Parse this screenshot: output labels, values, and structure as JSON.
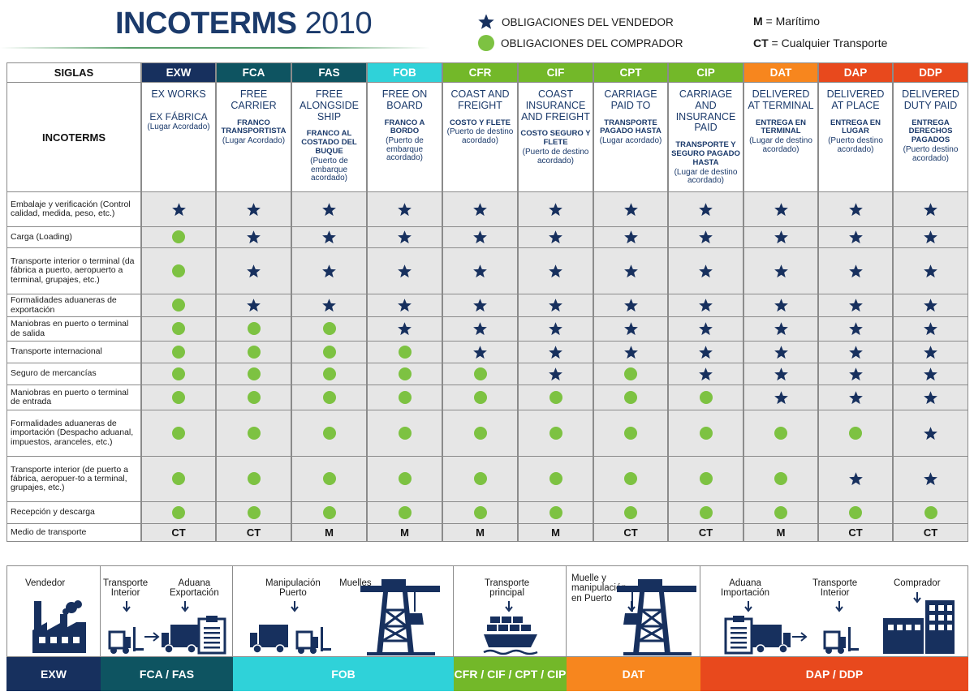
{
  "header": {
    "title_bold": "INCOTERMS",
    "title_year": "2010",
    "legend_seller": "OBLIGACIONES DEL VENDEDOR",
    "legend_buyer": "OBLIGACIONES DEL COMPRADOR",
    "legend_m_key": "M",
    "legend_m_text": " = Marítimo",
    "legend_ct_key": "CT",
    "legend_ct_text": " = Cualquier Transporte"
  },
  "table": {
    "siglas_label": "SIGLAS",
    "incoterms_label": "INCOTERMS",
    "terms": [
      {
        "code": "EXW",
        "color": "#17305e",
        "name": "EX WORKS",
        "name2": "EX FÁBRICA",
        "sub": "",
        "place": "(Lugar Acordado)",
        "mode": "CT"
      },
      {
        "code": "FCA",
        "color": "#0e5461",
        "name": "FREE CARRIER",
        "name2": "",
        "sub": "FRANCO TRANSPORTISTA",
        "place": "(Lugar Acordado)",
        "mode": "CT"
      },
      {
        "code": "FAS",
        "color": "#0e5461",
        "name": "FREE ALONGSIDE SHIP",
        "name2": "",
        "sub": "FRANCO AL COSTADO DEL BUQUE",
        "place": "(Puerto de embarque acordado)",
        "mode": "M"
      },
      {
        "code": "FOB",
        "color": "#2fd2d9",
        "name": "FREE ON BOARD",
        "name2": "",
        "sub": "FRANCO A BORDO",
        "place": "(Puerto de embarque acordado)",
        "mode": "M"
      },
      {
        "code": "CFR",
        "color": "#73b829",
        "name": "COAST AND FREIGHT",
        "name2": "",
        "sub": "COSTO Y FLETE",
        "place": "(Puerto de destino acordado)",
        "mode": "M"
      },
      {
        "code": "CIF",
        "color": "#73b829",
        "name": "COAST INSURANCE AND FREIGHT",
        "name2": "",
        "sub": "COSTO SEGURO Y FLETE",
        "place": "(Puerto de destino acordado)",
        "mode": "M"
      },
      {
        "code": "CPT",
        "color": "#73b829",
        "name": "CARRIAGE PAID TO",
        "name2": "",
        "sub": "TRANSPORTE PAGADO HASTA",
        "place": "(Lugar acordado)",
        "mode": "CT"
      },
      {
        "code": "CIP",
        "color": "#73b829",
        "name": "CARRIAGE AND INSURANCE PAID",
        "name2": "",
        "sub": "TRANSPORTE Y SEGURO PAGADO HASTA",
        "place": "(Lugar de destino acordado)",
        "mode": "CT"
      },
      {
        "code": "DAT",
        "color": "#f7861e",
        "name": "DELIVERED AT TERMINAL",
        "name2": "",
        "sub": "ENTREGA EN TERMINAL",
        "place": "(Lugar de destino acordado)",
        "mode": "M"
      },
      {
        "code": "DAP",
        "color": "#e8491d",
        "name": "DELIVERED AT PLACE",
        "name2": "",
        "sub": "ENTREGA EN LUGAR",
        "place": "(Puerto destino acordado)",
        "mode": "CT"
      },
      {
        "code": "DDP",
        "color": "#e8491d",
        "name": "DELIVERED DUTY PAID",
        "name2": "",
        "sub": "ENTREGA DERECHOS PAGADOS",
        "place": "(Puerto destino acordado)",
        "mode": "CT"
      }
    ],
    "rows": [
      {
        "label": "Embalaje y verificación (Control calidad, medida, peso, etc.)",
        "cells": "SSSSSSSSSSS"
      },
      {
        "label": "Carga (Loading)",
        "cells": "BSSSSSSSSSS"
      },
      {
        "label": "Transporte interior o terminal (da fábrica a puerto, aeropuerto a terminal, grupajes, etc.)",
        "cells": "BSSSSSSSSSS"
      },
      {
        "label": "Formalidades aduaneras de exportación",
        "cells": "BSSSSSSSSSS"
      },
      {
        "label": "Maniobras en puerto o terminal de salida",
        "cells": "BBBSSSSSSSS"
      },
      {
        "label": "Transporte internacional",
        "cells": "BBBBSSSSSSS"
      },
      {
        "label": "Seguro de mercancías",
        "cells": "BBBBBSBSSSS"
      },
      {
        "label": "Maniobras en puerto o terminal de entrada",
        "cells": "BBBBBBBBSSS"
      },
      {
        "label": "Formalidades aduaneras de importación (Despacho aduanal, impuestos, aranceles, etc.)",
        "cells": "BBBBBBBBBBS"
      },
      {
        "label": "Transporte interior (de puerto a fábrica, aeropuer-to a terminal, grupajes, etc.)",
        "cells": "BBBBBBBBBSS"
      },
      {
        "label": "Recepción y descarga",
        "cells": "BBBBBBBBBBB"
      },
      {
        "label": "Medio de transporte",
        "cells": "MODE"
      }
    ]
  },
  "diagram": {
    "seller": "Vendedor",
    "inland_transport": "Transporte\nInterior",
    "export_customs": "Aduana\nExportación",
    "port_handling": "Manipulación\nPuerto",
    "docks": "Muelles",
    "main_transport": "Transporte\nprincipal",
    "dock_handling": "Muelle y\nmanipulación\nen Puerto",
    "import_customs": "Aduana\nImportación",
    "inland_transport_2": "Transporte\nInterior",
    "buyer": "Comprador",
    "bands": [
      {
        "label": "EXW",
        "color": "#17305e"
      },
      {
        "label": "FCA / FAS",
        "color": "#0e5461"
      },
      {
        "label": "FOB",
        "color": "#2fd2d9"
      },
      {
        "label": "CFR / CIF / CPT / CIP",
        "color": "#73b829"
      },
      {
        "label": "DAT",
        "color": "#f7861e"
      },
      {
        "label": "DAP / DDP",
        "color": "#e8491d"
      }
    ],
    "icon_color": "#17305e"
  }
}
